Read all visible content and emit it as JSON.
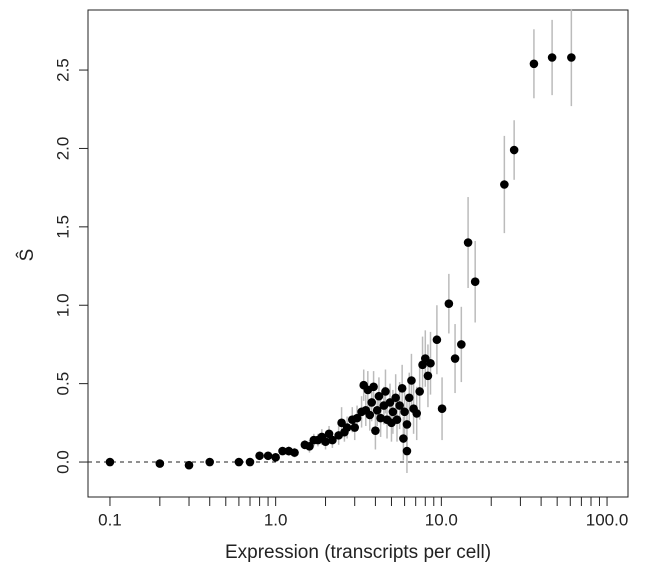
{
  "chart_data": {
    "type": "scatter",
    "x_label": "Expression (transcripts per cell)",
    "y_label": "Ŝ",
    "x_log": true,
    "xlim": [
      0.0737,
      133.8
    ],
    "ylim": [
      -0.223,
      2.883
    ],
    "xticks": [
      0.1,
      {
        "value": 1,
        "label": "1.0"
      },
      {
        "value": 10,
        "label": "10.0"
      },
      {
        "value": 100,
        "label": "100.0"
      }
    ],
    "xminorticks": [
      0.2,
      0.3,
      0.4,
      0.5,
      0.6,
      0.7,
      0.8,
      0.9,
      2,
      3,
      4,
      5,
      6,
      7,
      8,
      9,
      20,
      30,
      40,
      50,
      60,
      70,
      80,
      90
    ],
    "yticks": [
      {
        "value": 0,
        "label": "0.0"
      },
      0.5,
      {
        "value": 1,
        "label": "1.0"
      },
      1.5,
      {
        "value": 2,
        "label": "2.0"
      },
      2.5
    ],
    "hline": 0,
    "color": "#000000",
    "error_color": "#bbbbbb",
    "x": [
      0.1,
      0.2,
      0.3,
      0.4,
      0.6,
      0.7,
      0.8,
      0.9,
      1.0,
      1.1,
      1.2,
      1.3,
      1.5,
      1.6,
      1.7,
      1.8,
      1.9,
      2.0,
      2.1,
      2.2,
      2.4,
      2.5,
      2.6,
      2.7,
      2.9,
      3.0,
      3.1,
      3.3,
      3.4,
      3.5,
      3.6,
      3.7,
      3.8,
      3.9,
      4.0,
      4.1,
      4.2,
      4.3,
      4.5,
      4.6,
      4.7,
      4.9,
      5.0,
      5.1,
      5.3,
      5.4,
      5.6,
      5.8,
      5.9,
      6.0,
      6.2,
      6.4,
      6.2,
      6.6,
      6.8,
      7.1,
      7.4,
      7.7,
      8.0,
      8.3,
      8.6,
      9.4,
      10.1,
      11.1,
      12.1,
      13.2,
      14.5,
      16.0,
      24.0,
      27.5,
      36.2,
      46.6,
      60.9
    ],
    "values": [
      0,
      -0.01,
      -0.02,
      0,
      0,
      0,
      0.04,
      0.04,
      0.03,
      0.07,
      0.07,
      0.06,
      0.11,
      0.1,
      0.14,
      0.14,
      0.16,
      0.13,
      0.18,
      0.14,
      0.17,
      0.25,
      0.19,
      0.22,
      0.27,
      0.22,
      0.28,
      0.32,
      0.49,
      0.33,
      0.46,
      0.3,
      0.38,
      0.48,
      0.2,
      0.33,
      0.42,
      0.28,
      0.36,
      0.45,
      0.27,
      0.38,
      0.25,
      0.32,
      0.41,
      0.27,
      0.36,
      0.47,
      0.15,
      0.32,
      0.24,
      0.41,
      0.07,
      0.52,
      0.34,
      0.31,
      0.45,
      0.62,
      0.66,
      0.55,
      0.63,
      0.78,
      0.34,
      1.01,
      0.66,
      0.75,
      1.4,
      1.15,
      1.77,
      1.99,
      2.54,
      2.58,
      2.58
    ],
    "errors": [
      0.01,
      0.01,
      0.01,
      0.01,
      0.01,
      0.01,
      0.02,
      0.02,
      0.02,
      0.02,
      0.03,
      0.03,
      0.03,
      0.04,
      0.04,
      0.04,
      0.05,
      0.05,
      0.05,
      0.05,
      0.06,
      0.1,
      0.06,
      0.07,
      0.08,
      0.08,
      0.08,
      0.1,
      0.1,
      0.1,
      0.12,
      0.1,
      0.12,
      0.1,
      0.12,
      0.1,
      0.12,
      0.12,
      0.12,
      0.14,
      0.12,
      0.12,
      0.12,
      0.14,
      0.15,
      0.14,
      0.15,
      0.15,
      0.14,
      0.15,
      0.16,
      0.16,
      0.14,
      0.17,
      0.16,
      0.17,
      0.18,
      0.18,
      0.18,
      0.2,
      0.2,
      0.22,
      0.2,
      0.19,
      0.22,
      0.24,
      0.29,
      0.26,
      0.31,
      0.19,
      0.22,
      0.24,
      0.31
    ]
  }
}
